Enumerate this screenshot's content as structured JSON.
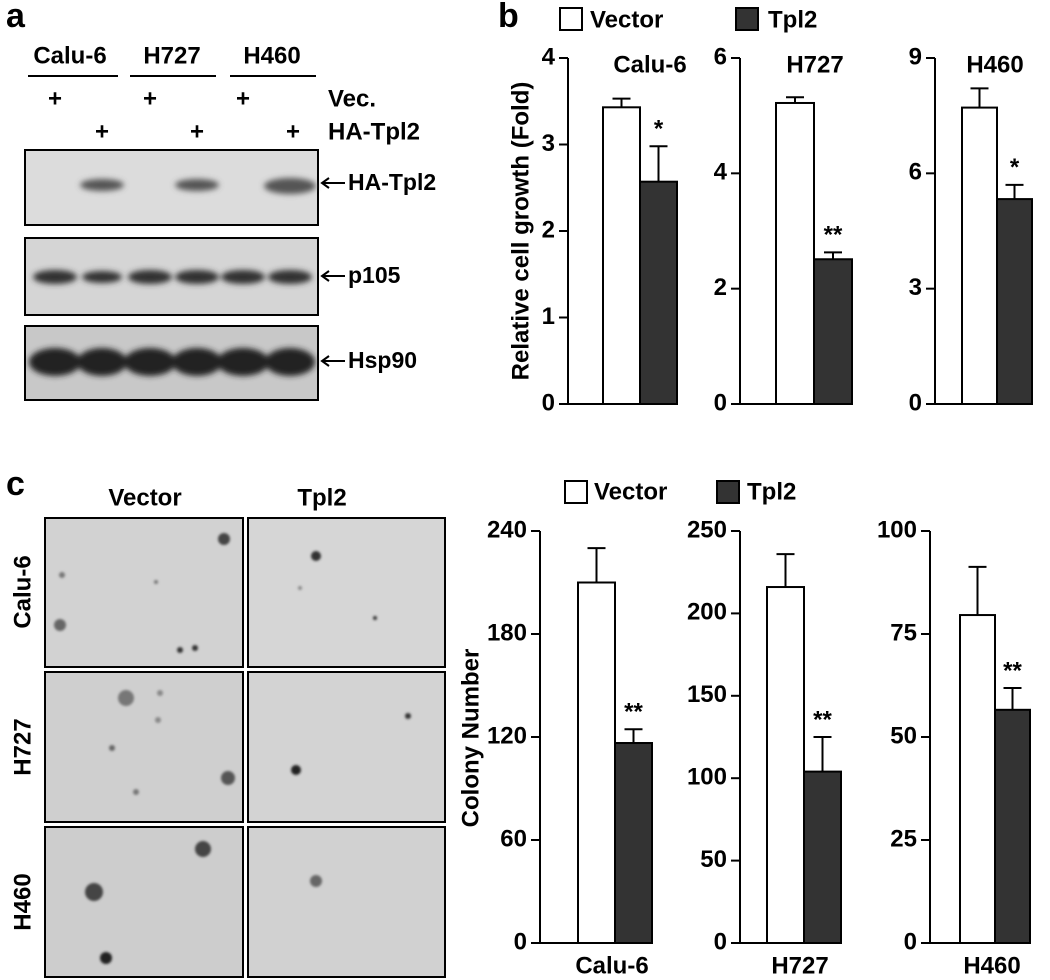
{
  "panel_labels": [
    "a",
    "b",
    "c"
  ],
  "blot": {
    "cell_lines": [
      "Calu-6",
      "H727",
      "H460"
    ],
    "rows": [
      {
        "label": "Vec.",
        "marks": [
          "+",
          "+",
          "+"
        ]
      },
      {
        "label": "HA-Tpl2",
        "marks": [
          "+",
          "+",
          "+"
        ]
      }
    ],
    "bands": [
      "HA-Tpl2",
      "p105",
      "Hsp90"
    ]
  },
  "micrographs": {
    "columns": [
      "Vector",
      "Tpl2"
    ],
    "rows": [
      "Calu-6",
      "H727",
      "H460"
    ]
  },
  "chart_data": [
    {
      "type": "bar",
      "title": "Calu-6",
      "ylabel": "Relative cell growth (Fold)",
      "ylim": [
        0,
        4
      ],
      "yticks": [
        0,
        1,
        2,
        3,
        4
      ],
      "significance": "*",
      "series": [
        {
          "name": "Vector",
          "color": "#ffffff",
          "values": [
            3.43
          ],
          "errors": [
            0.1
          ]
        },
        {
          "name": "Tpl2",
          "color": "#333333",
          "values": [
            2.57
          ],
          "errors": [
            0.41
          ]
        }
      ]
    },
    {
      "type": "bar",
      "title": "H727",
      "ylim": [
        0,
        6
      ],
      "yticks": [
        0,
        2,
        4,
        6
      ],
      "significance": "**",
      "series": [
        {
          "color": "#ffffff",
          "values": [
            5.22
          ],
          "errors": [
            0.1
          ]
        },
        {
          "color": "#333333",
          "values": [
            2.51
          ],
          "errors": [
            0.12
          ]
        }
      ]
    },
    {
      "type": "bar",
      "title": "H460",
      "ylim": [
        0,
        9
      ],
      "yticks": [
        0,
        3,
        6,
        9
      ],
      "significance": "*",
      "series": [
        {
          "color": "#ffffff",
          "values": [
            7.71
          ],
          "errors": [
            0.5
          ]
        },
        {
          "color": "#333333",
          "values": [
            5.33
          ],
          "errors": [
            0.37
          ]
        }
      ]
    },
    {
      "type": "bar",
      "xlabel": "Calu-6",
      "ylabel": "Colony Number",
      "ylim": [
        0,
        240
      ],
      "yticks": [
        0,
        60,
        120,
        180,
        240
      ],
      "significance": "**",
      "series": [
        {
          "name": "Vector",
          "color": "#ffffff",
          "values": [
            210
          ],
          "errors": [
            20
          ]
        },
        {
          "name": "Tpl2",
          "color": "#333333",
          "values": [
            116.5
          ],
          "errors": [
            8
          ]
        }
      ]
    },
    {
      "type": "bar",
      "xlabel": "H727",
      "ylim": [
        0,
        250
      ],
      "yticks": [
        0,
        50,
        100,
        150,
        200,
        250
      ],
      "significance": "**",
      "series": [
        {
          "color": "#ffffff",
          "values": [
            216
          ],
          "errors": [
            20
          ]
        },
        {
          "color": "#333333",
          "values": [
            104
          ],
          "errors": [
            21
          ]
        }
      ]
    },
    {
      "type": "bar",
      "xlabel": "H460",
      "ylim": [
        0,
        100
      ],
      "yticks": [
        0,
        25,
        50,
        75,
        100
      ],
      "significance": "**",
      "series": [
        {
          "color": "#ffffff",
          "values": [
            79.6
          ],
          "errors": [
            11.7
          ]
        },
        {
          "color": "#333333",
          "values": [
            56.6
          ],
          "errors": [
            5.3
          ]
        }
      ]
    }
  ]
}
